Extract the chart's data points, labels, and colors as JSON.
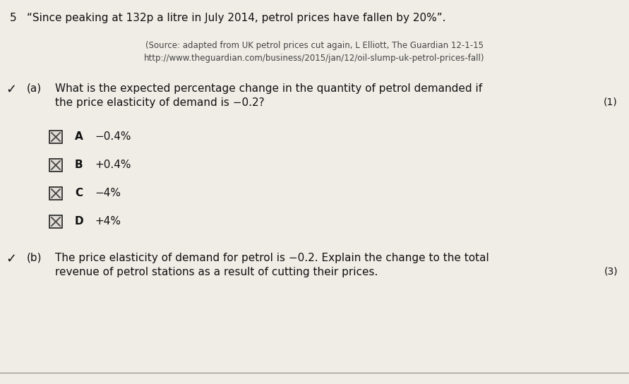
{
  "bg_color": "#f0ede6",
  "question_number": "5",
  "quote": "“Since peaking at 132p a litre in July 2014, petrol prices have fallen by 20%”.",
  "source_line1": "(Source: adapted from UK petrol prices cut again, L Elliott, The Guardian 12-1-15",
  "source_line2": "http://www.theguardian.com/business/2015/jan/12/oil-slump-uk-petrol-prices-fall)",
  "part_a_label": "(a)",
  "part_a_question_line1": "What is the expected percentage change in the quantity of petrol demanded if",
  "part_a_question_line2": "the price elasticity of demand is −0.2?",
  "part_a_marks": "(1)",
  "options": [
    {
      "letter": "A",
      "text": "−0.4%"
    },
    {
      "letter": "B",
      "text": "+0.4%"
    },
    {
      "letter": "C",
      "text": "−4%"
    },
    {
      "letter": "D",
      "text": "+4%"
    }
  ],
  "part_b_label": "(b)",
  "part_b_question_line1": "The price elasticity of demand for petrol is −0.2. Explain the change to the total",
  "part_b_question_line2": "revenue of petrol stations as a result of cutting their prices.",
  "part_b_marks": "(3)",
  "checkmark_color": "#111111",
  "text_color": "#111111",
  "source_color": "#444444",
  "checkbox_edge_color": "#222222",
  "checkbox_face_color": "#e0ddd6",
  "checkbox_x_color": "#444444"
}
